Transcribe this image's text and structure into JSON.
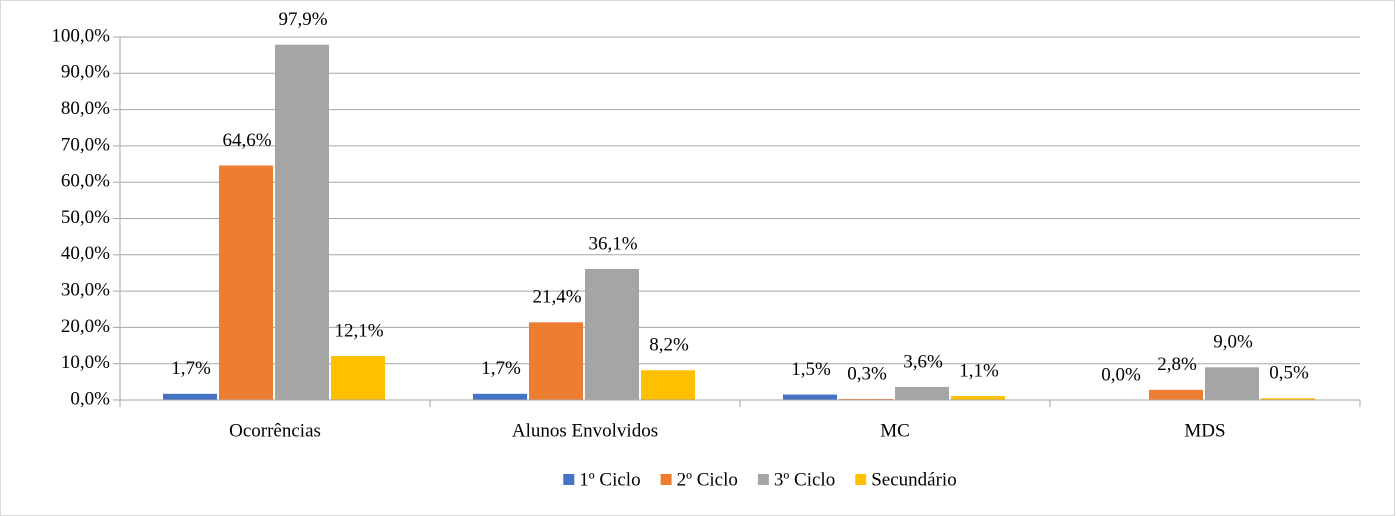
{
  "chart_data": {
    "type": "bar",
    "categories": [
      "Ocorrências",
      "Alunos Envolvidos",
      "MC",
      "MDS"
    ],
    "series": [
      {
        "name": "1º Ciclo",
        "color": "#4472c4",
        "values": [
          1.7,
          1.7,
          1.5,
          0.0
        ],
        "value_labels": [
          "1,7%",
          "1,7%",
          "1,5%",
          "0,0%"
        ]
      },
      {
        "name": "2º Ciclo",
        "color": "#ed7d31",
        "values": [
          64.6,
          21.4,
          0.3,
          2.8
        ],
        "value_labels": [
          "64,6%",
          "21,4%",
          "0,3%",
          "2,8%"
        ]
      },
      {
        "name": "3º Ciclo",
        "color": "#a5a5a5",
        "values": [
          97.9,
          36.1,
          3.6,
          9.0
        ],
        "value_labels": [
          "97,9%",
          "36,1%",
          "3,6%",
          "9,0%"
        ]
      },
      {
        "name": "Secundário",
        "color": "#ffc000",
        "values": [
          12.1,
          8.2,
          1.1,
          0.5
        ],
        "value_labels": [
          "12,1%",
          "8,2%",
          "1,1%",
          "0,5%"
        ]
      }
    ],
    "ylim": [
      0,
      100
    ],
    "yticks": [
      {
        "value": 0,
        "label": "0,0%"
      },
      {
        "value": 10,
        "label": "10,0%"
      },
      {
        "value": 20,
        "label": "20,0%"
      },
      {
        "value": 30,
        "label": "30,0%"
      },
      {
        "value": 40,
        "label": "40,0%"
      },
      {
        "value": 50,
        "label": "50,0%"
      },
      {
        "value": 60,
        "label": "60,0%"
      },
      {
        "value": 70,
        "label": "70,0%"
      },
      {
        "value": 80,
        "label": "80,0%"
      },
      {
        "value": 90,
        "label": "90,0%"
      },
      {
        "value": 100,
        "label": "100,0%"
      }
    ],
    "grid": true,
    "legend": "bottom"
  }
}
